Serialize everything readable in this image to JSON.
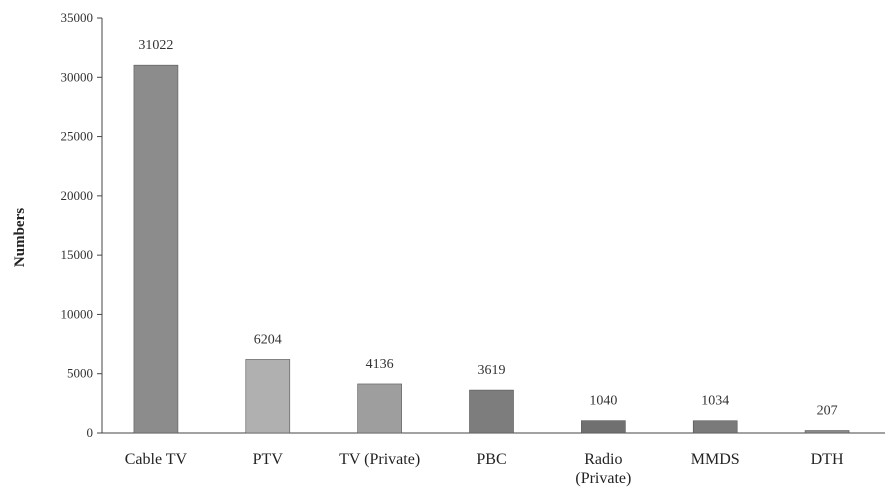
{
  "chart_data": {
    "type": "bar",
    "title": "",
    "xlabel": "",
    "ylabel": "Numbers",
    "ylim": [
      0,
      35000
    ],
    "yticks": [
      0,
      5000,
      10000,
      15000,
      20000,
      25000,
      30000,
      35000
    ],
    "grid": false,
    "legend": "none",
    "categories": [
      [
        "Cable TV"
      ],
      [
        "PTV"
      ],
      [
        "TV (Private)"
      ],
      [
        "PBC"
      ],
      [
        "Radio",
        "(Private)"
      ],
      [
        "MMDS"
      ],
      [
        "DTH"
      ]
    ],
    "values": [
      31022,
      6204,
      4136,
      3619,
      1040,
      1034,
      207
    ],
    "value_labels": [
      "31022",
      "6204",
      "4136",
      "3619",
      "1040",
      "1034",
      "207"
    ],
    "colors": [
      "#8c8c8c",
      "#b0b0b0",
      "#9e9e9e",
      "#7d7d7d",
      "#707070",
      "#7a7a7a",
      "#8a8a8a"
    ]
  }
}
